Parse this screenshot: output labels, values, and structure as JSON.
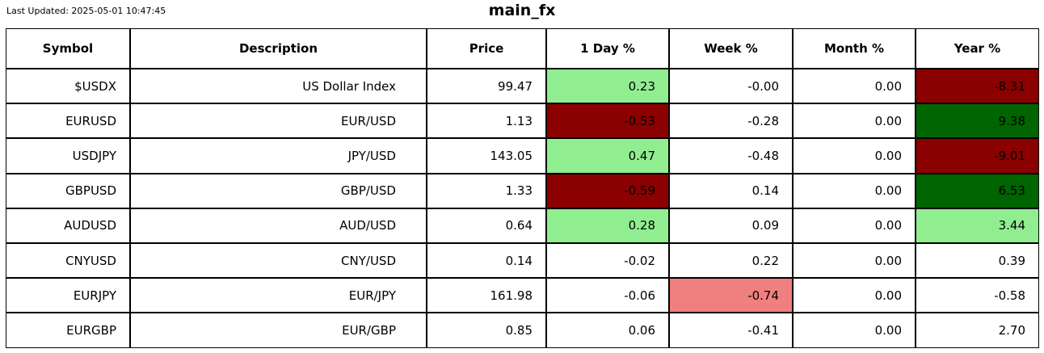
{
  "header": {
    "last_updated": "Last Updated: 2025-05-01 10:47:45",
    "title": "main_fx"
  },
  "palette": {
    "green_light": "#90EE90",
    "green_dark": "#006400",
    "red_light": "#F08080",
    "red_dark": "#8B0000",
    "default": "#FFFFFF"
  },
  "chart_data": {
    "type": "table",
    "title": "main_fx",
    "columns": [
      "Symbol",
      "Description",
      "Price",
      "1 Day %",
      "Week %",
      "Month %",
      "Year %"
    ],
    "rows": [
      {
        "cells": [
          "$USDX",
          "US Dollar Index",
          "99.47",
          "0.23",
          "-0.00",
          "0.00",
          "-8.31"
        ],
        "cell_colors": [
          null,
          null,
          null,
          "green_light",
          null,
          null,
          "red_dark"
        ]
      },
      {
        "cells": [
          "EURUSD",
          "EUR/USD",
          "1.13",
          "-0.53",
          "-0.28",
          "0.00",
          "9.38"
        ],
        "cell_colors": [
          null,
          null,
          null,
          "red_dark",
          null,
          null,
          "green_dark"
        ]
      },
      {
        "cells": [
          "USDJPY",
          "JPY/USD",
          "143.05",
          "0.47",
          "-0.48",
          "0.00",
          "-9.01"
        ],
        "cell_colors": [
          null,
          null,
          null,
          "green_light",
          null,
          null,
          "red_dark"
        ]
      },
      {
        "cells": [
          "GBPUSD",
          "GBP/USD",
          "1.33",
          "-0.59",
          "0.14",
          "0.00",
          "6.53"
        ],
        "cell_colors": [
          null,
          null,
          null,
          "red_dark",
          null,
          null,
          "green_dark"
        ]
      },
      {
        "cells": [
          "AUDUSD",
          "AUD/USD",
          "0.64",
          "0.28",
          "0.09",
          "0.00",
          "3.44"
        ],
        "cell_colors": [
          null,
          null,
          null,
          "green_light",
          null,
          null,
          "green_light"
        ]
      },
      {
        "cells": [
          "CNYUSD",
          "CNY/USD",
          "0.14",
          "-0.02",
          "0.22",
          "0.00",
          "0.39"
        ],
        "cell_colors": [
          null,
          null,
          null,
          null,
          null,
          null,
          null
        ]
      },
      {
        "cells": [
          "EURJPY",
          "EUR/JPY",
          "161.98",
          "-0.06",
          "-0.74",
          "0.00",
          "-0.58"
        ],
        "cell_colors": [
          null,
          null,
          null,
          null,
          "red_light",
          null,
          null
        ]
      },
      {
        "cells": [
          "EURGBP",
          "EUR/GBP",
          "0.85",
          "0.06",
          "-0.41",
          "0.00",
          "2.70"
        ],
        "cell_colors": [
          null,
          null,
          null,
          null,
          null,
          null,
          null
        ]
      }
    ]
  }
}
